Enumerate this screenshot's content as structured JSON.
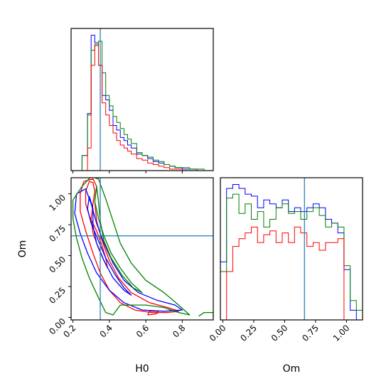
{
  "chart_data": {
    "type": "corner",
    "parameters": [
      "H0",
      "Om"
    ],
    "truths": {
      "H0": 0.35,
      "Om": 0.66
    },
    "truth_color": "#1f77b4",
    "series_colors": [
      "#0000ff",
      "#008000",
      "#ff0000"
    ],
    "axes": {
      "H0": {
        "label": "H0",
        "range": [
          0.19,
          0.97
        ],
        "ticks": [
          "0.2",
          "0.4",
          "0.6",
          "0.8"
        ]
      },
      "Om": {
        "label": "Om",
        "range": [
          -0.02,
          1.13
        ],
        "ticks": [
          "0.00",
          "0.25",
          "0.50",
          "0.75",
          "1.00"
        ]
      }
    },
    "hist_H0": {
      "bins": [
        0.19,
        0.22,
        0.25,
        0.28,
        0.3,
        0.32,
        0.34,
        0.36,
        0.38,
        0.4,
        0.42,
        0.44,
        0.46,
        0.48,
        0.5,
        0.52,
        0.55,
        0.58,
        0.61,
        0.64,
        0.67,
        0.7,
        0.73,
        0.76,
        0.8,
        0.84,
        0.88,
        0.92,
        0.97
      ],
      "series": [
        {
          "color": "#0000ff",
          "values": [
            0,
            0,
            10,
            38,
            90,
            85,
            70,
            50,
            47,
            40,
            30,
            27,
            22,
            20,
            17,
            15,
            11,
            10,
            8,
            6,
            5,
            4,
            3,
            2,
            1,
            1,
            0,
            0
          ]
        },
        {
          "color": "#008000",
          "values": [
            0,
            0,
            10,
            37,
            80,
            84,
            86,
            65,
            50,
            43,
            36,
            32,
            28,
            24,
            21,
            18,
            12,
            10,
            9,
            7,
            6,
            4,
            3,
            2,
            2,
            1,
            1,
            0
          ]
        },
        {
          "color": "#ff0000",
          "values": [
            0,
            0,
            0,
            15,
            70,
            83,
            70,
            45,
            37,
            30,
            25,
            20,
            17,
            15,
            13,
            11,
            8,
            7,
            5,
            4,
            3,
            2,
            1,
            1,
            0,
            0,
            0,
            0
          ]
        }
      ]
    },
    "hist_Om": {
      "bins": [
        -0.02,
        0.03,
        0.08,
        0.13,
        0.18,
        0.23,
        0.28,
        0.33,
        0.38,
        0.43,
        0.48,
        0.53,
        0.58,
        0.63,
        0.68,
        0.73,
        0.78,
        0.83,
        0.88,
        0.93,
        0.98,
        1.03,
        1.08,
        1.13
      ],
      "series": [
        {
          "color": "#0000ff",
          "values": [
            30,
            68,
            70,
            68,
            65,
            64,
            58,
            62,
            60,
            58,
            62,
            56,
            58,
            56,
            58,
            60,
            58,
            52,
            50,
            45,
            26,
            5,
            0
          ]
        },
        {
          "color": "#008000",
          "values": [
            25,
            63,
            65,
            55,
            60,
            52,
            56,
            48,
            52,
            58,
            60,
            55,
            56,
            52,
            56,
            58,
            54,
            48,
            50,
            48,
            28,
            10,
            5
          ]
        },
        {
          "color": "#ff0000",
          "values": [
            0,
            25,
            38,
            42,
            45,
            48,
            40,
            44,
            46,
            40,
            45,
            40,
            48,
            45,
            38,
            40,
            36,
            40,
            40,
            42,
            0,
            0,
            0
          ]
        }
      ]
    },
    "contours": [
      {
        "color": "#ff0000",
        "level": "inner",
        "points": [
          [
            0.29,
            1.1
          ],
          [
            0.27,
            1.02
          ],
          [
            0.27,
            0.92
          ],
          [
            0.29,
            0.82
          ],
          [
            0.33,
            0.7
          ],
          [
            0.36,
            0.58
          ],
          [
            0.38,
            0.48
          ],
          [
            0.39,
            0.4
          ],
          [
            0.37,
            0.46
          ],
          [
            0.34,
            0.56
          ],
          [
            0.31,
            0.68
          ],
          [
            0.3,
            0.8
          ],
          [
            0.31,
            0.92
          ],
          [
            0.32,
            1.02
          ],
          [
            0.31,
            1.09
          ],
          [
            0.29,
            1.1
          ]
        ]
      },
      {
        "color": "#ff0000",
        "level": "outer",
        "points": [
          [
            0.26,
            1.1
          ],
          [
            0.24,
            1.0
          ],
          [
            0.24,
            0.86
          ],
          [
            0.27,
            0.7
          ],
          [
            0.31,
            0.52
          ],
          [
            0.35,
            0.36
          ],
          [
            0.4,
            0.22
          ],
          [
            0.46,
            0.12
          ],
          [
            0.54,
            0.06
          ],
          [
            0.63,
            0.04
          ],
          [
            0.72,
            0.04
          ],
          [
            0.78,
            0.05
          ],
          [
            0.72,
            0.08
          ],
          [
            0.62,
            0.12
          ],
          [
            0.52,
            0.2
          ],
          [
            0.45,
            0.32
          ],
          [
            0.4,
            0.46
          ],
          [
            0.36,
            0.62
          ],
          [
            0.33,
            0.78
          ],
          [
            0.32,
            0.94
          ],
          [
            0.33,
            1.06
          ],
          [
            0.31,
            1.12
          ],
          [
            0.26,
            1.1
          ]
        ]
      },
      {
        "color": "#ff0000",
        "level": "island",
        "points": [
          [
            0.61,
            0.02
          ],
          [
            0.66,
            0.03
          ],
          [
            0.67,
            0.05
          ],
          [
            0.62,
            0.05
          ],
          [
            0.61,
            0.02
          ]
        ]
      },
      {
        "color": "#0000ff",
        "level": "inner",
        "points": [
          [
            0.29,
            0.98
          ],
          [
            0.28,
            0.88
          ],
          [
            0.3,
            0.76
          ],
          [
            0.34,
            0.62
          ],
          [
            0.38,
            0.48
          ],
          [
            0.43,
            0.35
          ],
          [
            0.48,
            0.24
          ],
          [
            0.52,
            0.18
          ],
          [
            0.48,
            0.22
          ],
          [
            0.42,
            0.32
          ],
          [
            0.37,
            0.46
          ],
          [
            0.33,
            0.6
          ],
          [
            0.31,
            0.74
          ],
          [
            0.31,
            0.88
          ],
          [
            0.29,
            0.98
          ]
        ]
      },
      {
        "color": "#0000ff",
        "level": "outer",
        "points": [
          [
            0.22,
            1.0
          ],
          [
            0.21,
            0.84
          ],
          [
            0.24,
            0.68
          ],
          [
            0.28,
            0.52
          ],
          [
            0.33,
            0.36
          ],
          [
            0.4,
            0.22
          ],
          [
            0.48,
            0.12
          ],
          [
            0.58,
            0.06
          ],
          [
            0.7,
            0.05
          ],
          [
            0.8,
            0.06
          ],
          [
            0.76,
            0.1
          ],
          [
            0.66,
            0.14
          ],
          [
            0.56,
            0.2
          ],
          [
            0.48,
            0.3
          ],
          [
            0.42,
            0.44
          ],
          [
            0.37,
            0.6
          ],
          [
            0.33,
            0.76
          ],
          [
            0.3,
            0.92
          ],
          [
            0.27,
            1.04
          ],
          [
            0.22,
            1.0
          ]
        ]
      },
      {
        "color": "#008000",
        "level": "inner",
        "points": [
          [
            0.33,
            1.06
          ],
          [
            0.32,
            0.94
          ],
          [
            0.34,
            0.8
          ],
          [
            0.37,
            0.66
          ],
          [
            0.41,
            0.52
          ],
          [
            0.46,
            0.4
          ],
          [
            0.52,
            0.28
          ],
          [
            0.58,
            0.2
          ],
          [
            0.53,
            0.24
          ],
          [
            0.47,
            0.34
          ],
          [
            0.41,
            0.48
          ],
          [
            0.37,
            0.62
          ],
          [
            0.35,
            0.78
          ],
          [
            0.34,
            0.94
          ],
          [
            0.33,
            1.06
          ]
        ]
      },
      {
        "color": "#008000",
        "level": "outer",
        "points": [
          [
            0.2,
            0.95
          ],
          [
            0.2,
            0.8
          ],
          [
            0.22,
            0.64
          ],
          [
            0.25,
            0.48
          ],
          [
            0.29,
            0.32
          ],
          [
            0.34,
            0.16
          ],
          [
            0.38,
            0.04
          ],
          [
            0.42,
            0.02
          ],
          [
            0.46,
            0.1
          ],
          [
            0.52,
            0.1
          ],
          [
            0.6,
            0.1
          ],
          [
            0.7,
            0.08
          ],
          [
            0.78,
            0.04
          ],
          [
            0.84,
            0.02
          ],
          [
            0.78,
            0.1
          ],
          [
            0.7,
            0.2
          ],
          [
            0.6,
            0.3
          ],
          [
            0.52,
            0.44
          ],
          [
            0.46,
            0.6
          ],
          [
            0.42,
            0.78
          ],
          [
            0.38,
            0.96
          ],
          [
            0.34,
            1.12
          ],
          [
            0.3,
            1.14
          ],
          [
            0.25,
            1.06
          ],
          [
            0.2,
            0.95
          ]
        ]
      },
      {
        "color": "#008000",
        "level": "island",
        "points": [
          [
            0.89,
            0.01
          ],
          [
            0.92,
            0.04
          ],
          [
            0.97,
            0.04
          ],
          [
            0.97,
            0.0
          ]
        ]
      }
    ]
  }
}
